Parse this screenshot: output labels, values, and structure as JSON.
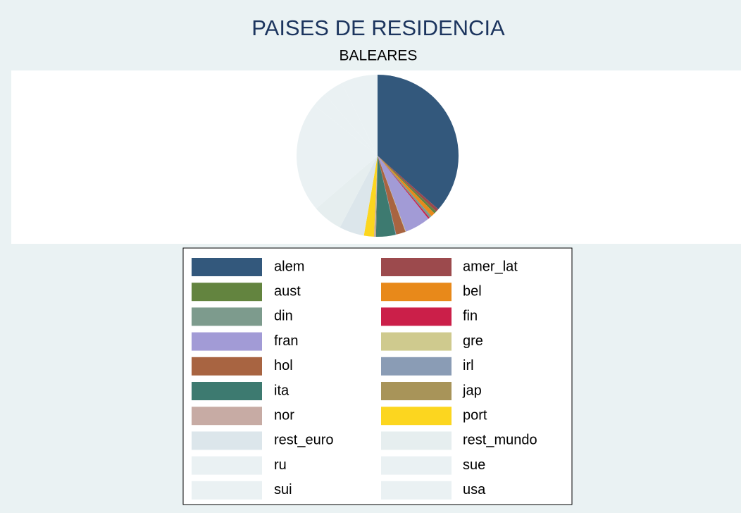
{
  "chart_data": {
    "type": "pie",
    "title": "PAISES DE RESIDENCIA",
    "subtitle": "BALEARES",
    "categories": [
      "alem",
      "amer_lat",
      "aust",
      "bel",
      "din",
      "fin",
      "fran",
      "gre",
      "hol",
      "irl",
      "ita",
      "jap",
      "nor",
      "port",
      "rest_euro",
      "rest_mundo",
      "ru",
      "sue",
      "sui",
      "usa"
    ],
    "values": [
      36.5,
      0.6,
      0.5,
      0.8,
      0.5,
      0.3,
      5.1,
      0.1,
      1.9,
      0.1,
      3.9,
      0.1,
      0.3,
      2.0,
      5,
      6,
      22,
      3,
      4,
      7.3
    ],
    "colors": [
      "#33587c",
      "#9c4a4d",
      "#63843f",
      "#e8891a",
      "#7d9b8d",
      "#cb1f49",
      "#a29bd6",
      "#cfca8e",
      "#a86441",
      "#8a9cb5",
      "#3d7a70",
      "#a89459",
      "#c7aba4",
      "#fcd61f",
      "#dce6eb",
      "#e6eeef",
      "#eaf1f3",
      "#eaf1f3",
      "#eaf1f3",
      "#eaf1f3"
    ],
    "legend": "bottom"
  }
}
